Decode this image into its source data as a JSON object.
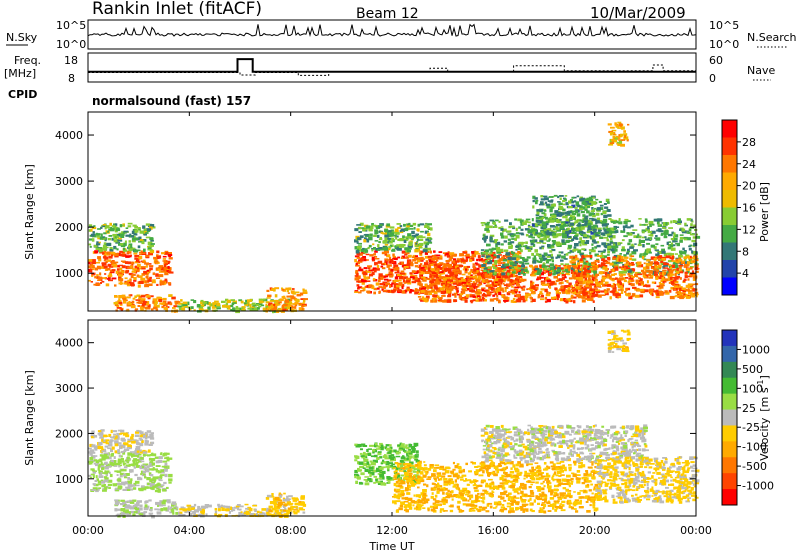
{
  "header": {
    "station": "Rankin Inlet (fitACF)",
    "beam": "Beam 12",
    "date": "10/Mar/2009"
  },
  "noise_panel": {
    "left_label": "N.Sky",
    "right_label": "N.Search",
    "left_ticks": [
      "10^5",
      "10^0"
    ],
    "right_ticks": [
      "10^5",
      "10^0"
    ]
  },
  "freq_panel": {
    "left_label_1": "Freq.",
    "left_label_2": "[MHz]",
    "left_ticks": [
      "18",
      "8"
    ],
    "right_label": "Nave",
    "right_ticks": [
      "60",
      "0"
    ],
    "cpid_label": "CPID",
    "cpid_value": "normalsound (fast) 157",
    "freq_series": [
      {
        "x": 0.0,
        "y": 11
      },
      {
        "x": 5.9,
        "y": 11
      },
      {
        "x": 5.9,
        "y": 17
      },
      {
        "x": 6.5,
        "y": 17
      },
      {
        "x": 6.5,
        "y": 11
      },
      {
        "x": 24.0,
        "y": 11
      }
    ],
    "nave_series": [
      {
        "x": 0.0,
        "y": 18
      },
      {
        "x": 6.0,
        "y": 18
      },
      {
        "x": 6.0,
        "y": 12
      },
      {
        "x": 6.6,
        "y": 12
      },
      {
        "x": 6.6,
        "y": 18
      },
      {
        "x": 8.3,
        "y": 18
      },
      {
        "x": 8.3,
        "y": 11
      },
      {
        "x": 9.5,
        "y": 11
      },
      {
        "x": 9.5,
        "y": 20
      },
      {
        "x": 13.5,
        "y": 20
      },
      {
        "x": 13.5,
        "y": 28
      },
      {
        "x": 14.2,
        "y": 28
      },
      {
        "x": 14.2,
        "y": 20
      },
      {
        "x": 16.8,
        "y": 20
      },
      {
        "x": 16.8,
        "y": 34
      },
      {
        "x": 18.8,
        "y": 34
      },
      {
        "x": 18.8,
        "y": 22
      },
      {
        "x": 22.3,
        "y": 22
      },
      {
        "x": 22.3,
        "y": 36
      },
      {
        "x": 22.7,
        "y": 36
      },
      {
        "x": 22.7,
        "y": 22
      },
      {
        "x": 24.0,
        "y": 22
      }
    ]
  },
  "axes": {
    "y_label": "Slant Range [km]",
    "y_ticks": [
      "1000",
      "2000",
      "3000",
      "4000"
    ],
    "x_label": "Time UT",
    "x_ticks": [
      "00:00",
      "04:00",
      "08:00",
      "12:00",
      "16:00",
      "20:00",
      "00:00"
    ]
  },
  "power_colorbar": {
    "label": "Power [dB]",
    "ticks": [
      "28",
      "24",
      "20",
      "16",
      "12",
      "8",
      "4"
    ],
    "colors": [
      "#ff0000",
      "#ff3300",
      "#ff7700",
      "#ffaa00",
      "#eebb00",
      "#88cc33",
      "#44aa44",
      "#337777",
      "#2244aa",
      "#0000ff"
    ]
  },
  "velocity_colorbar": {
    "label_main": "Velocity",
    "label_unit": "[m s",
    "label_sup": "-1",
    "label_close": "]",
    "ticks": [
      "1000",
      "500",
      "100",
      "25",
      "-25",
      "-100",
      "-500",
      "-1000"
    ],
    "colors": [
      "#2233bb",
      "#3366aa",
      "#338855",
      "#44bb33",
      "#99dd44",
      "#bbbbbb",
      "#ffcc00",
      "#ffaa00",
      "#ff7700",
      "#ff4400",
      "#ff0000"
    ]
  },
  "chart_data": [
    {
      "type": "heatmap",
      "title": "Power",
      "xlabel": "Time UT",
      "ylabel": "Slant Range [km]",
      "xlim": [
        0,
        24
      ],
      "ylim": [
        180,
        4500
      ],
      "zlabel": "Power [dB]",
      "zlim": [
        0,
        32
      ],
      "regions": [
        {
          "t0": 0.0,
          "t1": 3.2,
          "r0": 750,
          "r1": 1500,
          "value": 26
        },
        {
          "t0": 0.0,
          "t1": 2.5,
          "r0": 1500,
          "r1": 2100,
          "value": 12
        },
        {
          "t0": 1.0,
          "t1": 3.5,
          "r0": 200,
          "r1": 550,
          "value": 24
        },
        {
          "t0": 3.5,
          "t1": 8.0,
          "r0": 200,
          "r1": 450,
          "value": 14
        },
        {
          "t0": 7.0,
          "t1": 8.5,
          "r0": 200,
          "r1": 700,
          "value": 22
        },
        {
          "t0": 10.5,
          "t1": 17.0,
          "r0": 600,
          "r1": 1500,
          "value": 27
        },
        {
          "t0": 10.5,
          "t1": 13.5,
          "r0": 1500,
          "r1": 2100,
          "value": 12
        },
        {
          "t0": 13.0,
          "t1": 20.0,
          "r0": 400,
          "r1": 1200,
          "value": 26
        },
        {
          "t0": 15.5,
          "t1": 24.0,
          "r0": 1000,
          "r1": 2200,
          "value": 11
        },
        {
          "t0": 19.0,
          "t1": 24.0,
          "r0": 500,
          "r1": 1400,
          "value": 25
        },
        {
          "t0": 17.5,
          "t1": 20.5,
          "r0": 1800,
          "r1": 2700,
          "value": 10
        },
        {
          "t0": 20.5,
          "t1": 21.3,
          "r0": 3800,
          "r1": 4300,
          "value": 20
        }
      ]
    },
    {
      "type": "heatmap",
      "title": "Velocity",
      "xlabel": "Time UT",
      "ylabel": "Slant Range [km]",
      "xlim": [
        0,
        24
      ],
      "ylim": [
        180,
        4500
      ],
      "zlabel": "Velocity [m s-1]",
      "zlim": [
        -1000,
        1000
      ],
      "regions": [
        {
          "t0": 0.0,
          "t1": 3.2,
          "r0": 750,
          "r1": 1600,
          "value": 150
        },
        {
          "t0": 0.0,
          "t1": 2.5,
          "r0": 1600,
          "r1": 2100,
          "value": -60
        },
        {
          "t0": 1.0,
          "t1": 3.5,
          "r0": 200,
          "r1": 550,
          "value": 80
        },
        {
          "t0": 3.5,
          "t1": 8.0,
          "r0": 200,
          "r1": 450,
          "value": -80
        },
        {
          "t0": 7.0,
          "t1": 8.5,
          "r0": 200,
          "r1": 700,
          "value": -200
        },
        {
          "t0": 10.5,
          "t1": 13.0,
          "r0": 900,
          "r1": 1800,
          "value": 300
        },
        {
          "t0": 12.0,
          "t1": 20.0,
          "r0": 300,
          "r1": 1400,
          "value": -300
        },
        {
          "t0": 15.5,
          "t1": 22.0,
          "r0": 1400,
          "r1": 2200,
          "value": 0
        },
        {
          "t0": 20.0,
          "t1": 24.0,
          "r0": 500,
          "r1": 1500,
          "value": -150
        },
        {
          "t0": 20.5,
          "t1": 21.3,
          "r0": 3800,
          "r1": 4300,
          "value": -200
        }
      ]
    }
  ]
}
